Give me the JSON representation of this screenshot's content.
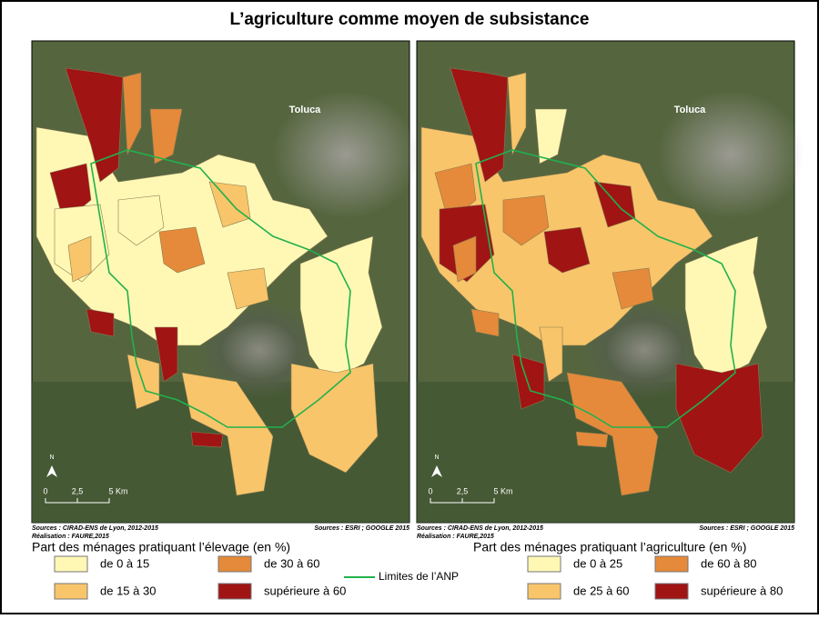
{
  "title": "L’agriculture comme moyen de subsistance",
  "maps": [
    {
      "city": "Toluca",
      "north": "N",
      "scale": [
        "0",
        "2,5",
        "5 Km"
      ],
      "sources": "Sources : CIRAD-ENS de Lyon, 2012-2015",
      "credit": "Réalisation : FAURE,2015",
      "imagery": "Sources : ESRI ; GOOGLE 2015"
    },
    {
      "city": "Toluca",
      "north": "N",
      "scale": [
        "0",
        "2,5",
        "5 Km"
      ],
      "sources": "Sources : CIRAD-ENS de Lyon, 2012-2015",
      "credit": "Réalisation : FAURE,2015",
      "imagery": "Sources : ESRI ; GOOGLE 2015"
    }
  ],
  "legends": [
    {
      "title": "Part des ménages pratiquant l’élevage (en %)",
      "items": [
        {
          "label": "de 0 à 15",
          "color": "#fff8b4"
        },
        {
          "label": "de 15 à 30",
          "color": "#f8c56a"
        },
        {
          "label": "de 30 à 60",
          "color": "#e58a3a"
        },
        {
          "label": "supérieure à 60",
          "color": "#a01414"
        }
      ]
    },
    {
      "title": "Part des ménages pratiquant l’agriculture (en %)",
      "items": [
        {
          "label": "de 0 à 25",
          "color": "#fff8b4"
        },
        {
          "label": "de 25 à 60",
          "color": "#f8c56a"
        },
        {
          "label": "de 60 à 80",
          "color": "#e58a3a"
        },
        {
          "label": "supérieure à 80",
          "color": "#a01414"
        }
      ]
    }
  ],
  "boundary": {
    "label": "Limites de l’ANP",
    "color": "#22b14c"
  }
}
